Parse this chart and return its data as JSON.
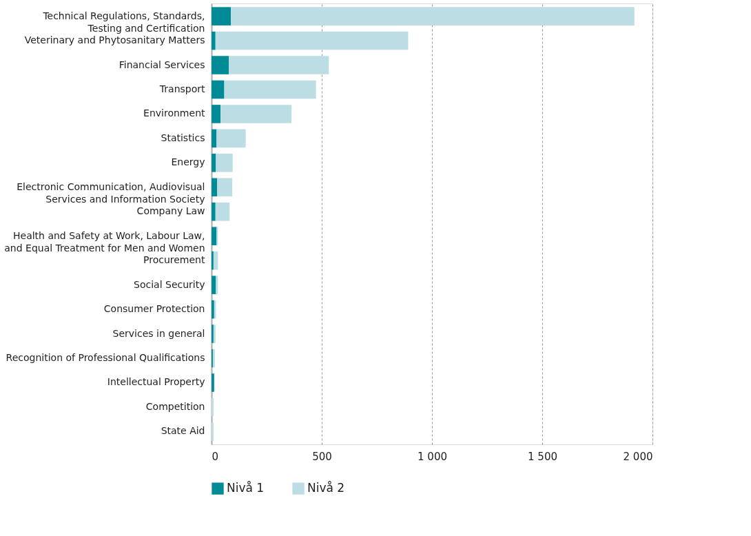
{
  "chart_data": {
    "type": "bar",
    "orientation": "horizontal",
    "stacked": true,
    "categories": [
      "Technical Regulations, Standards,\nTesting and Certification",
      "Veterinary and Phytosanitary Matters",
      "Financial Services",
      "Transport",
      "Environment",
      "Statistics",
      "Energy",
      "Electronic Communication, Audiovisual\nServices and Information Society",
      "Company Law",
      "Health and Safety at Work, Labour Law,\nand Equal Treatment for Men and Women",
      "Procurement",
      "Social Security",
      "Consumer Protection",
      "Services in general",
      "Recognition of Professional Qualifications",
      "Intellectual Property",
      "Competition",
      "State Aid"
    ],
    "series": [
      {
        "name": "Nivå 1",
        "color": "#008b96",
        "values": [
          88,
          18,
          79,
          58,
          41,
          23,
          20,
          26,
          18,
          23,
          9,
          20,
          12,
          9,
          6,
          12,
          0,
          0
        ]
      },
      {
        "name": "Nivå 2",
        "color": "#bcdde3",
        "values": [
          1830,
          874,
          453,
          416,
          322,
          132,
          76,
          68,
          64,
          6,
          20,
          9,
          8,
          9,
          9,
          0,
          9,
          9
        ]
      }
    ],
    "xlim": [
      0,
      2000
    ],
    "xticks": [
      0,
      500,
      {
        "value": 1000,
        "label": "1 000"
      },
      {
        "value": 1500,
        "label": "1 500"
      },
      {
        "value": 2000,
        "label": "2 000"
      }
    ],
    "grid": "x",
    "legend": "bottom left"
  }
}
